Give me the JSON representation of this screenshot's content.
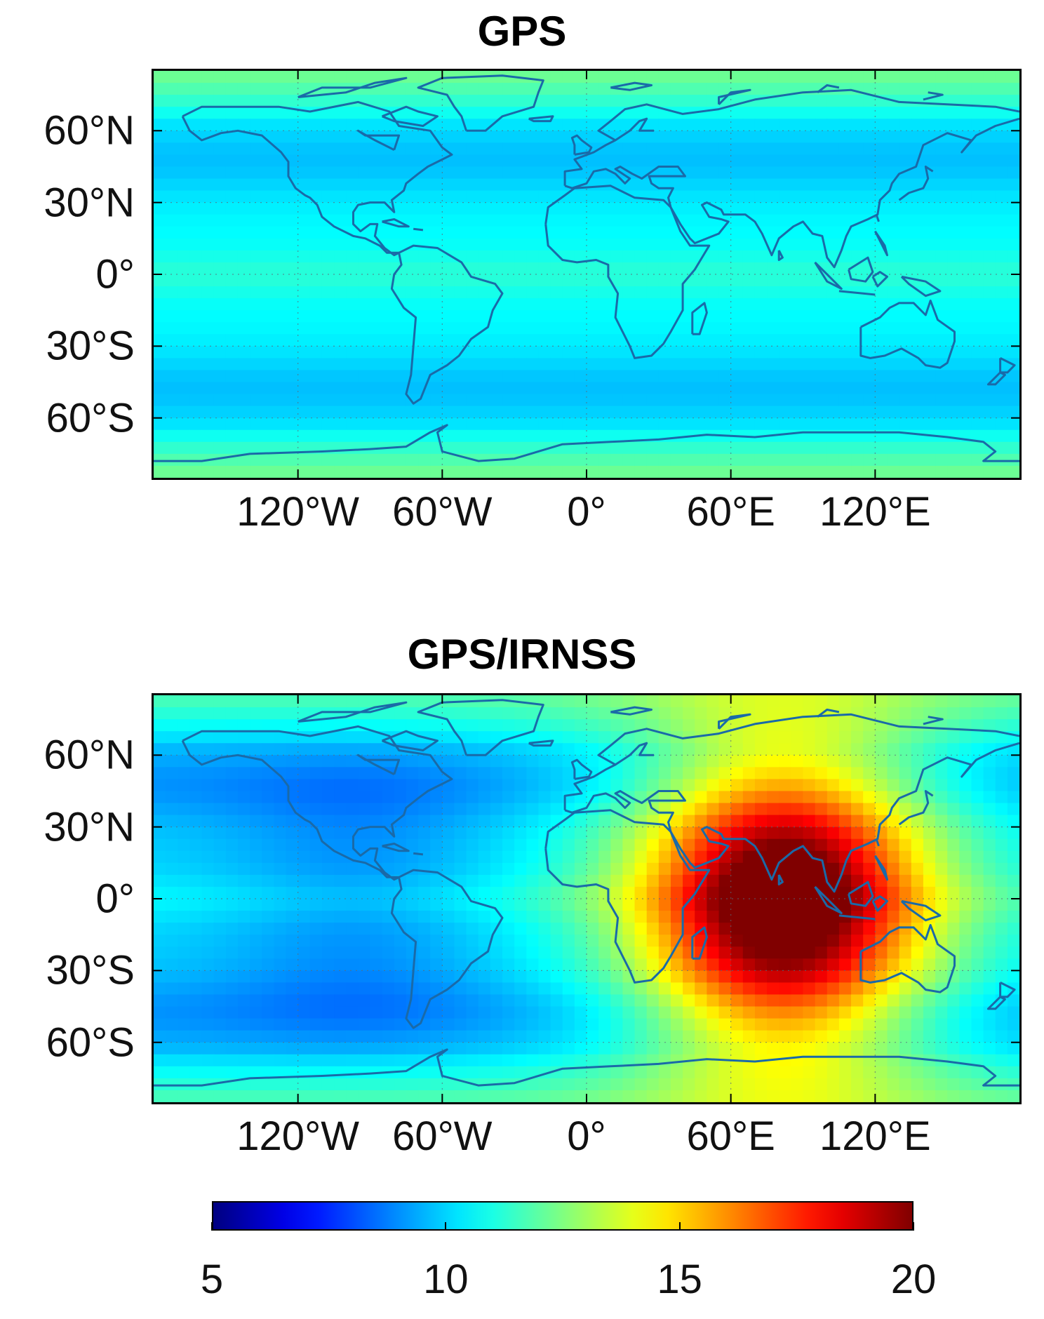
{
  "panels": [
    {
      "title": "GPS",
      "field": "gps-uniform"
    },
    {
      "title": "GPS/IRNSS",
      "field": "gps-irnss"
    }
  ],
  "axes": {
    "lat_ticks": [
      {
        "value": 60,
        "label": "60°N"
      },
      {
        "value": 30,
        "label": "30°N"
      },
      {
        "value": 0,
        "label": "0°"
      },
      {
        "value": -30,
        "label": "30°S"
      },
      {
        "value": -60,
        "label": "60°S"
      }
    ],
    "lon_ticks": [
      {
        "value": -120,
        "label": "120°W"
      },
      {
        "value": -60,
        "label": "60°W"
      },
      {
        "value": 0,
        "label": "0°"
      },
      {
        "value": 60,
        "label": "60°E"
      },
      {
        "value": 120,
        "label": "120°E"
      }
    ],
    "lon_range": [
      -180,
      180
    ],
    "lat_range": [
      -85,
      85
    ],
    "grid": "dotted"
  },
  "colorbar": {
    "min": 5,
    "max": 20,
    "ticks": [
      "5",
      "10",
      "15",
      "20"
    ],
    "colormap": "jet"
  },
  "colors": {
    "coastline": "#1a6aa8",
    "frame": "#000000"
  }
}
